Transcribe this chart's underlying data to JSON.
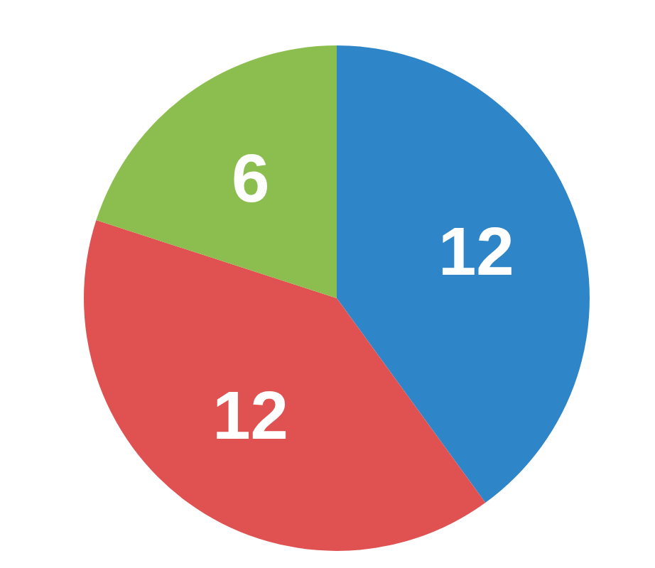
{
  "chart_data": {
    "type": "pie",
    "categories": [
      null,
      null,
      null
    ],
    "values": [
      12,
      12,
      6
    ],
    "colors": [
      "#2e86c9",
      "#e05151",
      "#8bbd4f"
    ],
    "data_labels": true,
    "legend": false
  }
}
